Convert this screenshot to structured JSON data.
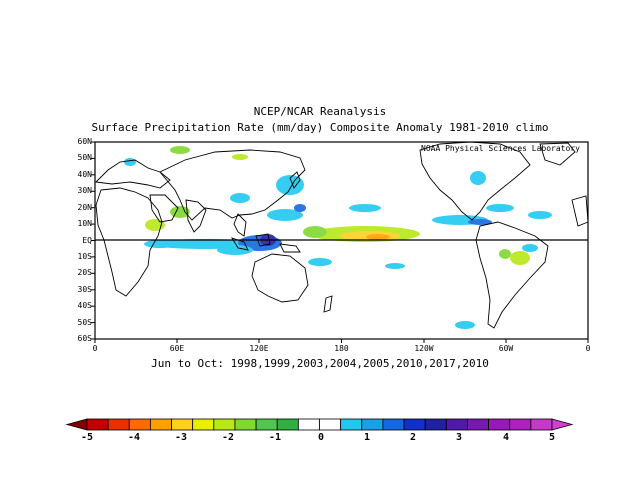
{
  "titles": {
    "line1": "NCEP/NCAR Reanalysis",
    "line2": "Surface Precipitation Rate (mm/day) Composite Anomaly 1981-2010 climo",
    "credit": "NOAA Physical Sciences Laboratory",
    "subtitle": "Jun to Oct: 1998,1999,2003,2004,2005,2010,2017,2010"
  },
  "axes": {
    "lat_labels": [
      "60N",
      "50N",
      "40N",
      "30N",
      "20N",
      "10N",
      "EQ",
      "10S",
      "20S",
      "30S",
      "40S",
      "50S",
      "60S"
    ],
    "lon_labels": [
      "0",
      "60E",
      "120E",
      "180",
      "120W",
      "60W",
      "0"
    ]
  },
  "colorbar": {
    "labels": [
      "-5",
      "-4",
      "-3",
      "-2",
      "-1",
      "0",
      "1",
      "2",
      "3",
      "4",
      "5"
    ],
    "colors": [
      "#c00000",
      "#e83000",
      "#ff6a00",
      "#ffa000",
      "#ffd020",
      "#e8f000",
      "#b8e818",
      "#80d830",
      "#50c850",
      "#30b040",
      "#ffffff",
      "#ffffff",
      "#20c8f0",
      "#1aa0e8",
      "#1468e0",
      "#1030c8",
      "#2020a0",
      "#5018a8",
      "#7818b0",
      "#9818b8",
      "#b020c0",
      "#c838c8"
    ]
  }
}
